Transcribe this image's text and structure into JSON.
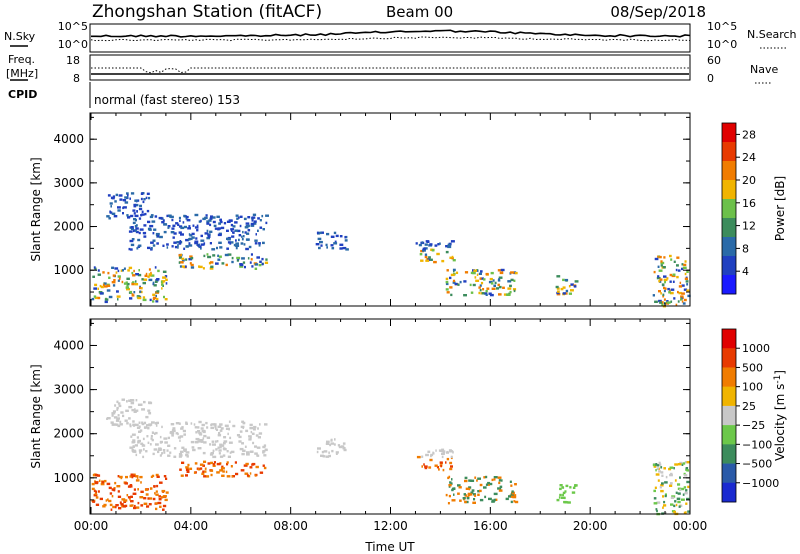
{
  "header": {
    "station": "Zhongshan Station (fitACF)",
    "beam": "Beam 00",
    "date": "08/Sep/2018"
  },
  "noise_panel": {
    "left_label": "N.Sky",
    "right_label": "N.Search",
    "tick_top": "10^5",
    "tick_bottom": "10^0"
  },
  "freq_panel": {
    "left_label_1": "Freq.",
    "left_label_2": "[MHz]",
    "left_tick_top": "18",
    "left_tick_bottom": "8",
    "right_label": "Nave",
    "right_tick_top": "60",
    "right_tick_bottom": "0"
  },
  "cpid": {
    "label": "CPID",
    "value": "normal (fast stereo) 153"
  },
  "chart_data": [
    {
      "type": "heatmap",
      "title": "",
      "xlabel": "",
      "ylabel": "Slant Range [km]",
      "y_ticks": [
        "1000",
        "2000",
        "3000",
        "4000"
      ],
      "ylim": [
        180,
        4600
      ],
      "xlim_hours": [
        0,
        24
      ],
      "colorbar": {
        "label": "Power [dB]",
        "ticks": [
          "4",
          "8",
          "12",
          "16",
          "20",
          "24",
          "28"
        ],
        "range": [
          0,
          30
        ],
        "colors": [
          "#1a1aff",
          "#2040c0",
          "#2a6aa8",
          "#3c8c5c",
          "#6cc04a",
          "#f0b400",
          "#f07c00",
          "#e83a00",
          "#e00000"
        ]
      },
      "regions": [
        {
          "t0": 0.6,
          "t1": 2.3,
          "r0": 2200,
          "r1": 2800
        },
        {
          "t0": 1.5,
          "t1": 7.0,
          "r0": 1500,
          "r1": 2300
        },
        {
          "t0": 3.5,
          "t1": 7.0,
          "r0": 1050,
          "r1": 1400
        },
        {
          "t0": 0.0,
          "t1": 3.0,
          "r0": 300,
          "r1": 1100
        },
        {
          "t0": 9.0,
          "t1": 10.2,
          "r0": 1500,
          "r1": 1900
        },
        {
          "t0": 13.0,
          "t1": 14.5,
          "r0": 1200,
          "r1": 1700
        },
        {
          "t0": 14.2,
          "t1": 17.0,
          "r0": 450,
          "r1": 1050
        },
        {
          "t0": 18.6,
          "t1": 19.4,
          "r0": 400,
          "r1": 900
        },
        {
          "t0": 22.5,
          "t1": 23.9,
          "r0": 200,
          "r1": 1400
        }
      ]
    },
    {
      "type": "heatmap",
      "title": "",
      "xlabel": "Time UT",
      "ylabel": "Slant Range [km]",
      "x_ticks": [
        "00:00",
        "04:00",
        "08:00",
        "12:00",
        "16:00",
        "20:00",
        "00:00"
      ],
      "y_ticks": [
        "1000",
        "2000",
        "3000",
        "4000"
      ],
      "ylim": [
        180,
        4600
      ],
      "xlim_hours": [
        0,
        24
      ],
      "colorbar": {
        "label": "Velocity [m s^-1]",
        "ticks": [
          "1000",
          "500",
          "100",
          "25",
          "−25",
          "−100",
          "−500",
          "−1000"
        ],
        "range": [
          -1000,
          1000
        ],
        "colors": [
          "#1a2ad0",
          "#2a5aa8",
          "#3c8c5c",
          "#6cc84a",
          "#c8c8c8",
          "#f0b400",
          "#f07c00",
          "#e83a00",
          "#e00000"
        ]
      },
      "regions": [
        {
          "t0": 0.6,
          "t1": 2.3,
          "r0": 2200,
          "r1": 2800
        },
        {
          "t0": 1.5,
          "t1": 7.0,
          "r0": 1500,
          "r1": 2300
        },
        {
          "t0": 3.5,
          "t1": 7.0,
          "r0": 1050,
          "r1": 1400
        },
        {
          "t0": 0.0,
          "t1": 3.0,
          "r0": 300,
          "r1": 1100
        },
        {
          "t0": 9.0,
          "t1": 10.2,
          "r0": 1500,
          "r1": 1900
        },
        {
          "t0": 13.0,
          "t1": 14.5,
          "r0": 1200,
          "r1": 1700
        },
        {
          "t0": 14.2,
          "t1": 17.0,
          "r0": 450,
          "r1": 1050
        },
        {
          "t0": 18.6,
          "t1": 19.4,
          "r0": 400,
          "r1": 900
        },
        {
          "t0": 22.5,
          "t1": 23.9,
          "r0": 200,
          "r1": 1400
        }
      ]
    }
  ]
}
